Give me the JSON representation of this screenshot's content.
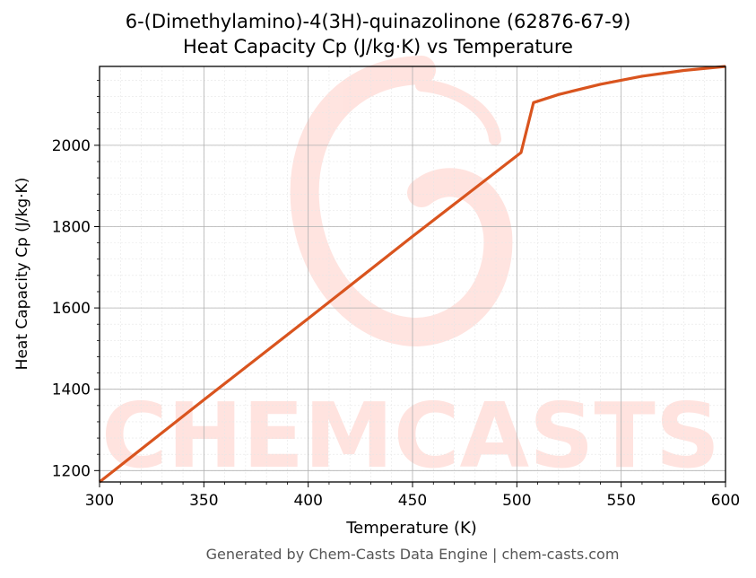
{
  "chart_data": {
    "type": "line",
    "title": "6-(Dimethylamino)-4(3H)-quinazolinone (62876-67-9)",
    "subtitle": "Heat Capacity Cp (J/kg·K) vs Temperature",
    "xlabel": "Temperature (K)",
    "ylabel": "Heat Capacity Cp (J/kg·K)",
    "xlim": [
      300,
      600
    ],
    "ylim": [
      1172,
      2194
    ],
    "xticks": [
      300,
      350,
      400,
      450,
      500,
      550,
      600
    ],
    "yticks": [
      1200,
      1400,
      1600,
      1800,
      2000
    ],
    "grid": true,
    "line_color": "#d9541e",
    "series": [
      {
        "x": [
          300,
          350,
          400,
          450,
          502,
          508,
          520,
          540,
          560,
          580,
          600
        ],
        "y": [
          1172,
          1374,
          1574,
          1776,
          1982,
          2105,
          2125,
          2150,
          2170,
          2184,
          2194
        ]
      }
    ]
  },
  "watermark": "CHEMCASTS",
  "footer": "Generated by Chem-Casts Data Engine | chem-casts.com"
}
